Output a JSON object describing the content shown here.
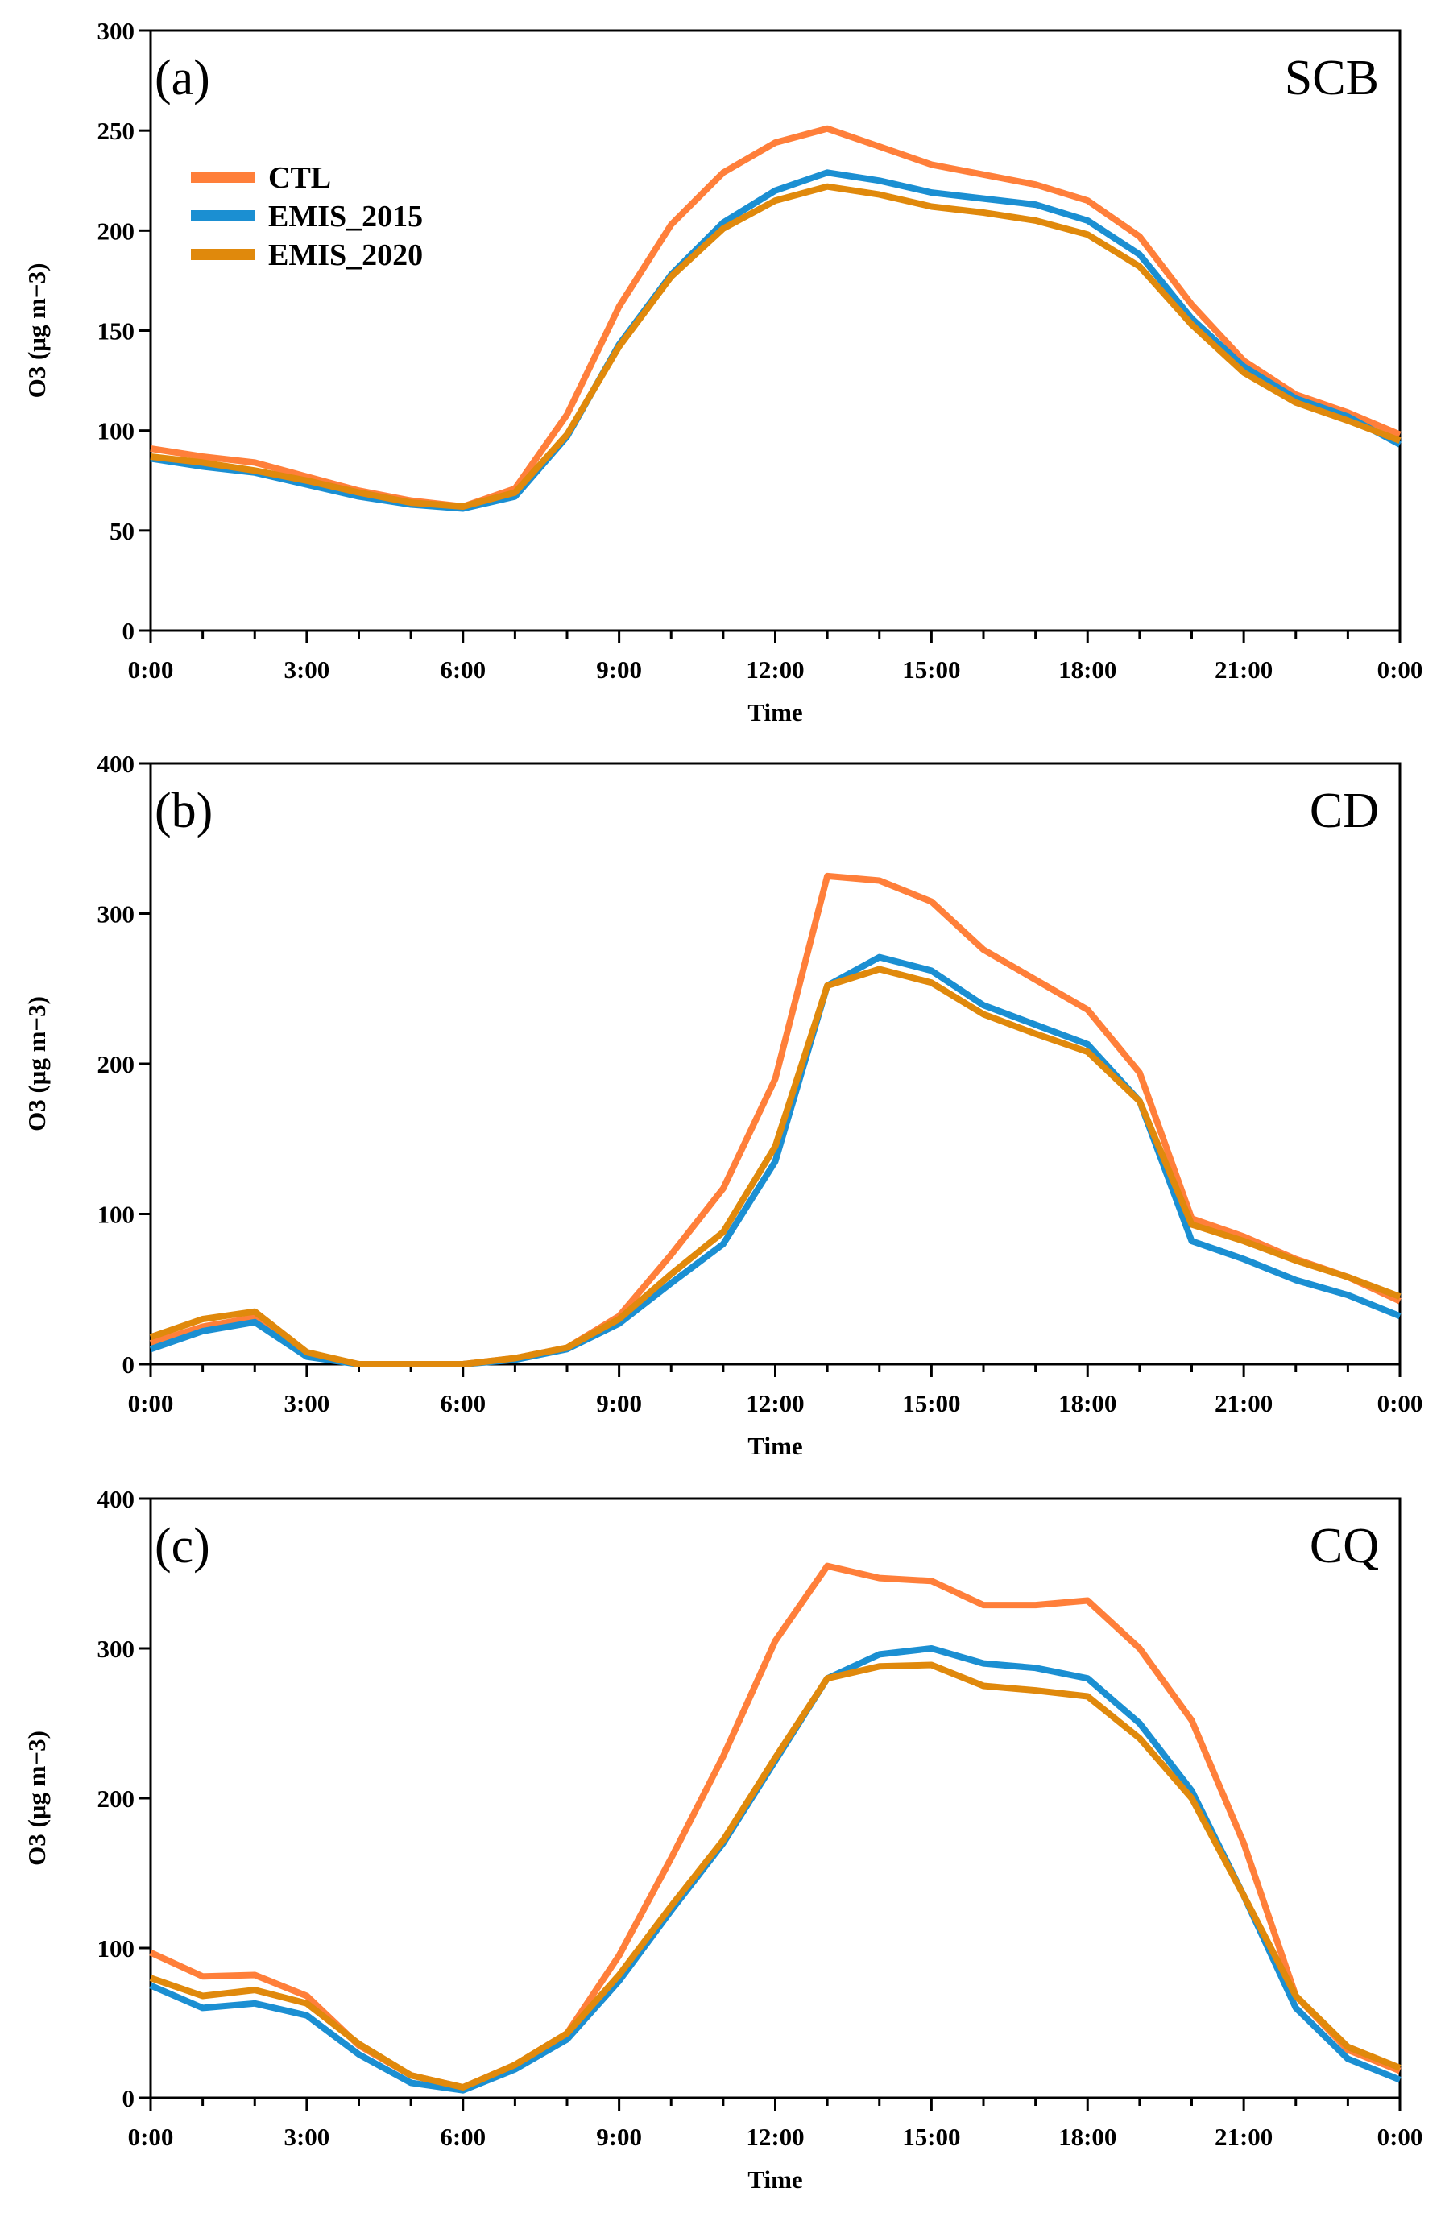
{
  "chart_data": [
    {
      "type": "line",
      "panel_label": "(a)",
      "title": "SCB",
      "xlabel": "Time",
      "ylabel": "O3 (μg m−3)",
      "ylabel_parts": {
        "main": "O",
        "sub": "3",
        "unit": " (μg m",
        "sup": "−3",
        "close": ")"
      },
      "x": [
        0,
        1,
        2,
        3,
        4,
        5,
        6,
        7,
        8,
        9,
        10,
        11,
        12,
        13,
        14,
        15,
        16,
        17,
        18,
        19,
        20,
        21,
        22,
        23,
        24
      ],
      "xticks": [
        "0:00",
        "3:00",
        "6:00",
        "9:00",
        "12:00",
        "15:00",
        "18:00",
        "21:00",
        "0:00"
      ],
      "ylim": [
        0,
        300
      ],
      "yticks": [
        0,
        50,
        100,
        150,
        200,
        250,
        300
      ],
      "legend": "top-left",
      "series": [
        {
          "name": "CTL",
          "color": "#FF7F3A",
          "values": [
            91,
            87,
            84,
            77,
            70,
            65,
            62,
            71,
            108,
            162,
            203,
            229,
            244,
            251,
            242,
            233,
            228,
            223,
            215,
            197,
            163,
            135,
            118,
            109,
            98
          ]
        },
        {
          "name": "EMIS_2015",
          "color": "#1B8FD2",
          "values": [
            86,
            82,
            79,
            73,
            67,
            63,
            61,
            67,
            97,
            143,
            178,
            204,
            220,
            229,
            225,
            219,
            216,
            213,
            205,
            188,
            156,
            132,
            116,
            107,
            93
          ]
        },
        {
          "name": "EMIS_2020",
          "color": "#E0890C",
          "values": [
            87,
            84,
            80,
            75,
            69,
            64,
            62,
            69,
            98,
            142,
            177,
            201,
            215,
            222,
            218,
            212,
            209,
            205,
            198,
            182,
            153,
            129,
            114,
            105,
            95
          ]
        }
      ]
    },
    {
      "type": "line",
      "panel_label": "(b)",
      "title": "CD",
      "xlabel": "Time",
      "ylabel": "O3 (μg m−3)",
      "ylabel_parts": {
        "main": "O",
        "sub": "3",
        "unit": " (μg m",
        "sup": "−3",
        "close": ")"
      },
      "x": [
        0,
        1,
        2,
        3,
        4,
        5,
        6,
        7,
        8,
        9,
        10,
        11,
        12,
        13,
        14,
        15,
        16,
        17,
        18,
        19,
        20,
        21,
        22,
        23,
        24
      ],
      "xticks": [
        "0:00",
        "3:00",
        "6:00",
        "9:00",
        "12:00",
        "15:00",
        "18:00",
        "21:00",
        "0:00"
      ],
      "ylim": [
        0,
        400
      ],
      "yticks": [
        0,
        100,
        200,
        300,
        400
      ],
      "series": [
        {
          "name": "CTL",
          "color": "#FF7F3A",
          "values": [
            14,
            25,
            31,
            7,
            0,
            0,
            0,
            4,
            11,
            32,
            73,
            117,
            190,
            325,
            322,
            308,
            276,
            256,
            236,
            194,
            97,
            85,
            70,
            58,
            42
          ]
        },
        {
          "name": "EMIS_2015",
          "color": "#1B8FD2",
          "values": [
            10,
            22,
            28,
            5,
            0,
            0,
            0,
            3,
            10,
            27,
            54,
            80,
            135,
            252,
            271,
            262,
            239,
            226,
            213,
            175,
            82,
            70,
            56,
            46,
            32
          ]
        },
        {
          "name": "EMIS_2020",
          "color": "#E0890C",
          "values": [
            18,
            30,
            35,
            8,
            0,
            0,
            0,
            4,
            11,
            30,
            60,
            88,
            145,
            252,
            263,
            254,
            233,
            220,
            208,
            175,
            93,
            82,
            69,
            58,
            45
          ]
        }
      ]
    },
    {
      "type": "line",
      "panel_label": "(c)",
      "title": "CQ",
      "xlabel": "Time",
      "ylabel": "O3 (μg m−3)",
      "ylabel_parts": {
        "main": "O",
        "sub": "3",
        "unit": " (μg m",
        "sup": "−3",
        "close": ")"
      },
      "x": [
        0,
        1,
        2,
        3,
        4,
        5,
        6,
        7,
        8,
        9,
        10,
        11,
        12,
        13,
        14,
        15,
        16,
        17,
        18,
        19,
        20,
        21,
        22,
        23,
        24
      ],
      "xticks": [
        "0:00",
        "3:00",
        "6:00",
        "9:00",
        "12:00",
        "15:00",
        "18:00",
        "21:00",
        "0:00"
      ],
      "ylim": [
        0,
        400
      ],
      "yticks": [
        0,
        100,
        200,
        300,
        400
      ],
      "series": [
        {
          "name": "CTL",
          "color": "#FF7F3A",
          "values": [
            97,
            81,
            82,
            68,
            35,
            15,
            7,
            22,
            43,
            95,
            160,
            228,
            305,
            355,
            347,
            345,
            329,
            329,
            332,
            300,
            252,
            170,
            68,
            32,
            18
          ]
        },
        {
          "name": "EMIS_2015",
          "color": "#1B8FD2",
          "values": [
            75,
            60,
            63,
            55,
            29,
            10,
            5,
            19,
            39,
            78,
            125,
            170,
            225,
            280,
            296,
            300,
            290,
            287,
            280,
            250,
            205,
            135,
            60,
            26,
            12
          ]
        },
        {
          "name": "EMIS_2020",
          "color": "#E0890C",
          "values": [
            80,
            68,
            72,
            63,
            36,
            15,
            7,
            22,
            43,
            82,
            128,
            172,
            227,
            280,
            288,
            289,
            275,
            272,
            268,
            240,
            200,
            135,
            68,
            34,
            20
          ]
        }
      ]
    }
  ]
}
